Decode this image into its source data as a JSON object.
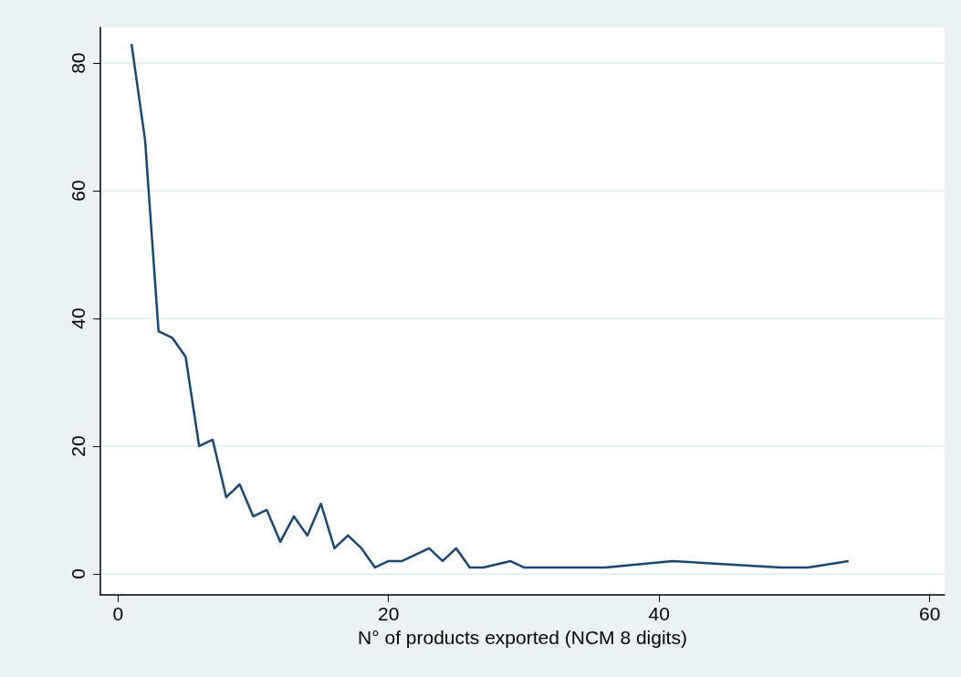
{
  "chart_data": {
    "type": "line",
    "xlabel": "N° of products exported (NCM 8 digits)",
    "x": [
      1,
      2,
      3,
      4,
      5,
      6,
      7,
      8,
      9,
      10,
      11,
      12,
      13,
      14,
      15,
      16,
      17,
      18,
      19,
      20,
      21,
      23,
      24,
      25,
      26,
      27,
      29,
      30,
      36,
      41,
      49,
      51,
      54
    ],
    "series": [
      {
        "color": "#1a476f",
        "values": [
          83,
          68,
          38,
          37,
          34,
          20,
          21,
          12,
          14,
          9,
          10,
          5,
          9,
          6,
          11,
          4,
          6,
          4,
          1,
          2,
          2,
          4,
          2,
          4,
          1,
          1,
          2,
          1,
          1,
          2,
          1,
          1,
          2
        ]
      }
    ],
    "xlim": [
      -1.3,
      61.1
    ],
    "xticks": [
      0,
      20,
      40,
      60
    ],
    "ylim": [
      -3.3,
      85.6
    ],
    "yticks": [
      0,
      20,
      40,
      60,
      80
    ],
    "grid": "y",
    "marker": "none",
    "line_style": "solid"
  }
}
